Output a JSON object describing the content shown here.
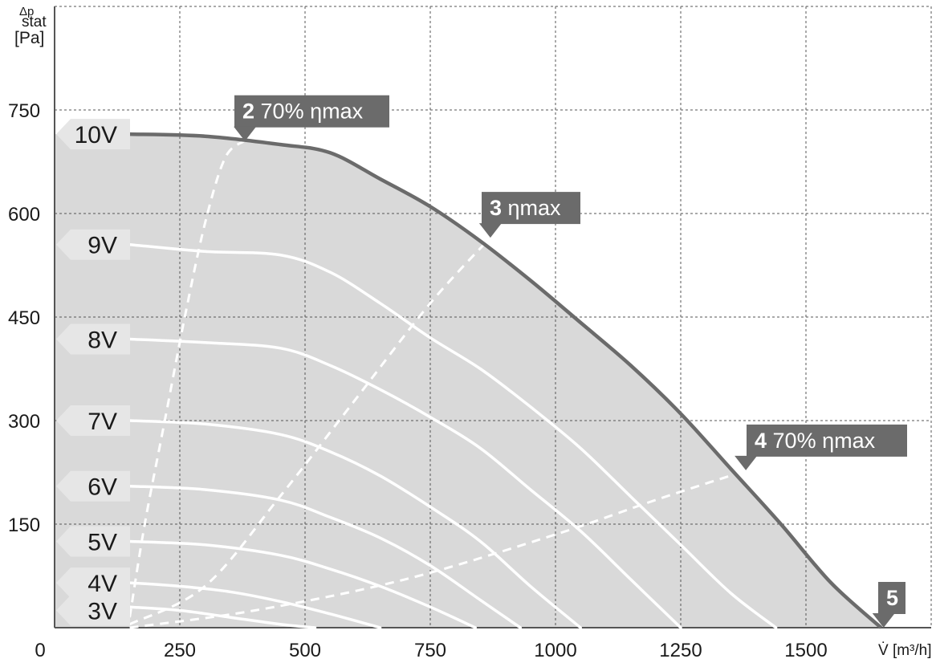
{
  "chart_data": {
    "type": "line",
    "title": "",
    "ylabel_symbol": "Δp",
    "ylabel_sub": "stat",
    "ylabel_unit": "[Pa]",
    "xlabel": "V̇ [m³/h]",
    "xlim": [
      0,
      1750
    ],
    "ylim": [
      0,
      900
    ],
    "x_ticks": [
      {
        "value": 0,
        "label": "0"
      },
      {
        "value": 250,
        "label": "250"
      },
      {
        "value": 500,
        "label": "500"
      },
      {
        "value": 750,
        "label": "750"
      },
      {
        "value": 1000,
        "label": "1000"
      },
      {
        "value": 1250,
        "label": "1250"
      },
      {
        "value": 1500,
        "label": "1500"
      }
    ],
    "y_ticks": [
      {
        "value": 150,
        "label": "150"
      },
      {
        "value": 300,
        "label": "300"
      },
      {
        "value": 450,
        "label": "450"
      },
      {
        "value": 600,
        "label": "600"
      },
      {
        "value": 750,
        "label": "750"
      }
    ],
    "x_gridlines": [
      250,
      500,
      750,
      1000,
      1250,
      1500,
      1750
    ],
    "y_gridlines": [
      150,
      300,
      450,
      600,
      750
    ],
    "grid": true,
    "colors": {
      "area": "#d9d9d9",
      "envelope": "#6b6b6b",
      "curves": "#ffffff",
      "label_bg": "#e6e6e6",
      "marker_bg": "#6b6b6b",
      "grid": "#555555"
    },
    "series": [
      {
        "name": "10V",
        "x": [
          150,
          300,
          450,
          550,
          650,
          750,
          850,
          950,
          1050,
          1150,
          1250,
          1350,
          1450,
          1550,
          1650
        ],
        "y": [
          715,
          712,
          700,
          688,
          650,
          610,
          560,
          503,
          442,
          380,
          310,
          230,
          150,
          65,
          0
        ]
      },
      {
        "name": "9V",
        "x": [
          150,
          300,
          450,
          550,
          650,
          750,
          850,
          950,
          1050,
          1150,
          1250,
          1350,
          1440
        ],
        "y": [
          555,
          545,
          540,
          515,
          470,
          420,
          375,
          320,
          260,
          190,
          120,
          50,
          0
        ]
      },
      {
        "name": "8V",
        "x": [
          150,
          300,
          450,
          550,
          650,
          750,
          850,
          950,
          1050,
          1150,
          1250
        ],
        "y": [
          418,
          413,
          405,
          380,
          345,
          305,
          260,
          200,
          140,
          70,
          0
        ]
      },
      {
        "name": "7V",
        "x": [
          150,
          300,
          450,
          550,
          650,
          750,
          850,
          950,
          1050
        ],
        "y": [
          300,
          295,
          280,
          255,
          220,
          175,
          125,
          60,
          0
        ]
      },
      {
        "name": "6V",
        "x": [
          150,
          300,
          450,
          550,
          650,
          750,
          850,
          930
        ],
        "y": [
          205,
          200,
          185,
          160,
          130,
          90,
          40,
          0
        ]
      },
      {
        "name": "5V",
        "x": [
          150,
          300,
          450,
          550,
          650,
          750,
          840
        ],
        "y": [
          125,
          120,
          105,
          85,
          60,
          30,
          0
        ]
      },
      {
        "name": "4V",
        "x": [
          150,
          250,
          350,
          450,
          550,
          650
        ],
        "y": [
          65,
          60,
          52,
          38,
          20,
          0
        ]
      },
      {
        "name": "3V",
        "x": [
          150,
          250,
          350,
          450,
          520
        ],
        "y": [
          30,
          25,
          15,
          5,
          0
        ]
      }
    ],
    "operating_lines": [
      {
        "id": "op2",
        "number": "2",
        "text": "70% ηmax",
        "x": [
          150,
          180,
          220,
          260,
          300,
          340,
          378
        ],
        "y": [
          15,
          150,
          300,
          450,
          585,
          680,
          705
        ]
      },
      {
        "id": "op3",
        "number": "3",
        "text": "ηmax",
        "x": [
          150,
          300,
          450,
          600,
          750,
          870
        ],
        "y": [
          5,
          60,
          190,
          330,
          470,
          565
        ]
      },
      {
        "id": "op4",
        "number": "4",
        "text": "70% ηmax",
        "x": [
          150,
          400,
          700,
          1000,
          1200,
          1370
        ],
        "y": [
          0,
          25,
          70,
          135,
          185,
          225
        ]
      },
      {
        "id": "op5",
        "number": "5",
        "text": "",
        "x": [],
        "y": []
      }
    ],
    "marker_points": [
      {
        "id": "op2",
        "x": 380,
        "y": 705
      },
      {
        "id": "op3",
        "x": 870,
        "y": 565
      },
      {
        "id": "op4",
        "x": 1380,
        "y": 228
      },
      {
        "id": "op5",
        "x": 1655,
        "y": 0
      }
    ],
    "voltage_labels": [
      {
        "text": "10V",
        "y": 715
      },
      {
        "text": "9V",
        "y": 555
      },
      {
        "text": "8V",
        "y": 418
      },
      {
        "text": "7V",
        "y": 300
      },
      {
        "text": "6V",
        "y": 205
      },
      {
        "text": "5V",
        "y": 125
      },
      {
        "text": "4V",
        "y": 65
      },
      {
        "text": "3V",
        "y": 25
      }
    ]
  }
}
